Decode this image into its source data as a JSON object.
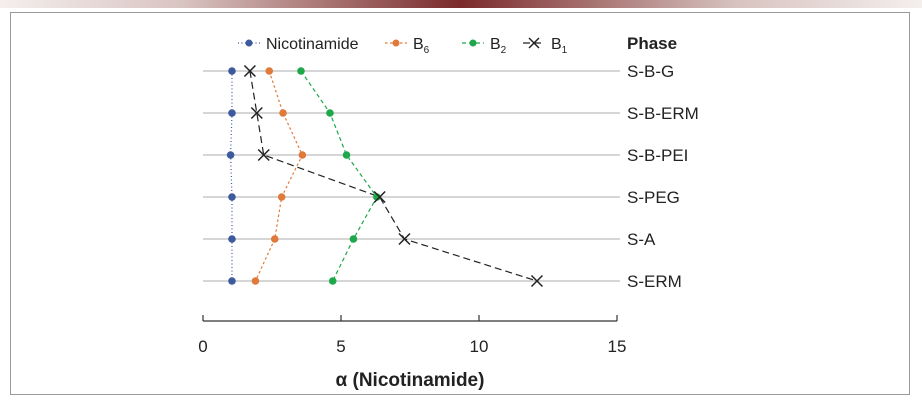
{
  "chart_data": {
    "type": "line",
    "title": "",
    "xlabel": "α (Nicotinamide)",
    "ylabel": "",
    "xlim": [
      0,
      15
    ],
    "xticks": [
      0,
      5,
      10,
      15
    ],
    "phase_header": "Phase",
    "categories": [
      "S-B-G",
      "S-B-ERM",
      "S-B-PEI",
      "S-PEG",
      "S-A",
      "S-ERM"
    ],
    "legend_position": "top",
    "series": [
      {
        "name": "Nicotinamide",
        "sub": "",
        "color": "#3d5a9e",
        "marker": "circle",
        "dash": "1,2.5",
        "values": [
          1.05,
          1.05,
          1.0,
          1.05,
          1.05,
          1.05
        ]
      },
      {
        "name": "B",
        "sub": "6",
        "color": "#e07a3a",
        "marker": "circle",
        "dash": "2.5,2.5",
        "values": [
          2.4,
          2.9,
          3.6,
          2.85,
          2.6,
          1.9
        ]
      },
      {
        "name": "B",
        "sub": "2",
        "color": "#1fa84a",
        "marker": "circle",
        "dash": "4,3",
        "values": [
          3.55,
          4.6,
          5.2,
          6.3,
          5.45,
          4.7
        ]
      },
      {
        "name": "B",
        "sub": "1",
        "color": "#222222",
        "marker": "x",
        "dash": "7,4",
        "values": [
          1.7,
          1.95,
          2.2,
          6.4,
          7.3,
          12.1
        ]
      }
    ]
  }
}
